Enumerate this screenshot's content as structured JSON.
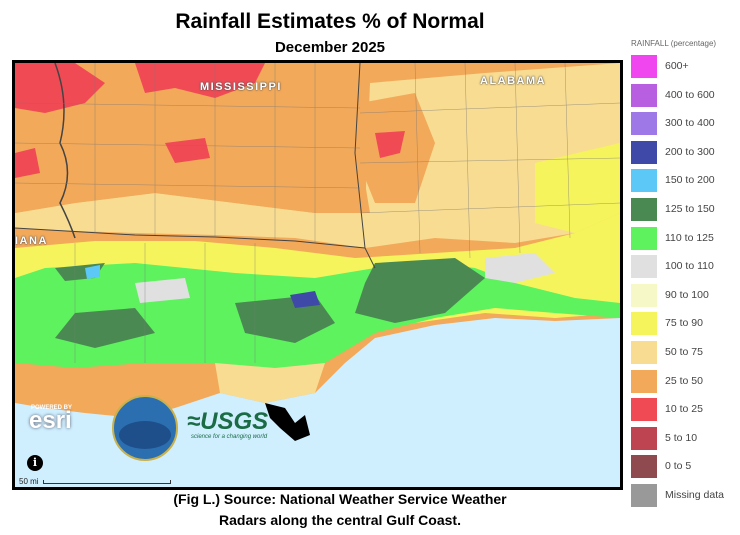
{
  "title": "Rainfall Estimates % of Normal",
  "subtitle": "December 2025",
  "caption": {
    "line1": "(Fig L.) Source: National Weather Service Weather",
    "line2": "Radars along the central Gulf Coast."
  },
  "map": {
    "state_labels": {
      "mississippi": "MISSISSIPPI",
      "alabama": "ALABAMA",
      "louisiana_partial": "IANA"
    },
    "credits": {
      "esri_powered": "POWERED BY",
      "esri": "esri",
      "usgs": "≈USGS",
      "usgs_tagline": "science for a changing world"
    },
    "info_symbol": "i",
    "scale_label": "50 mi"
  },
  "legend": {
    "title": "RAINFALL (percentage)",
    "items": [
      {
        "label": "600+",
        "color": "#f046f0"
      },
      {
        "label": "400 to 600",
        "color": "#b85ee0"
      },
      {
        "label": "300 to 400",
        "color": "#9f78e8"
      },
      {
        "label": "200 to 300",
        "color": "#3f4aa8"
      },
      {
        "label": "150 to 200",
        "color": "#5cc8f8"
      },
      {
        "label": "125 to 150",
        "color": "#4a8a52"
      },
      {
        "label": "110 to 125",
        "color": "#5ef25e"
      },
      {
        "label": "100 to 110",
        "color": "#e0e0e0"
      },
      {
        "label": "90 to 100",
        "color": "#f6f8c8"
      },
      {
        "label": "75 to 90",
        "color": "#f6f45c"
      },
      {
        "label": "50 to 75",
        "color": "#f8dc92"
      },
      {
        "label": "25 to 50",
        "color": "#f2a95a"
      },
      {
        "label": "10 to 25",
        "color": "#f04a55"
      },
      {
        "label": "5 to 10",
        "color": "#bd4450"
      },
      {
        "label": "0 to 5",
        "color": "#8e4a4f"
      },
      {
        "label": "Missing data",
        "color": "#999999"
      }
    ]
  }
}
